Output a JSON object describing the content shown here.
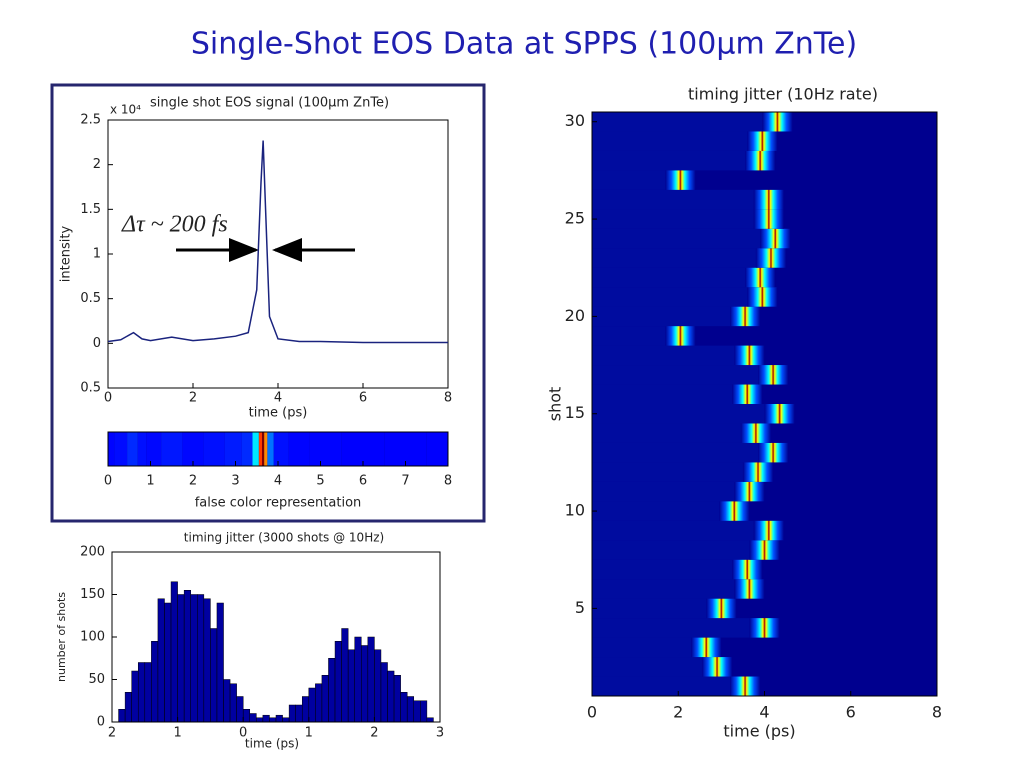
{
  "title": "Single-Shot EOS Data at SPPS (100µm ZnTe)",
  "chart_data": [
    {
      "type": "line",
      "title": "single shot EOS signal (100µm ZnTe)",
      "y_multiplier": "x 10⁴",
      "xlabel": "time (ps)",
      "ylabel": "intensity",
      "annotation": "Δτ ~ 200 fs",
      "color": "#1a237e",
      "x": [
        0,
        0.3,
        0.6,
        0.8,
        1,
        1.5,
        2,
        2.5,
        3,
        3.3,
        3.5,
        3.6,
        3.65,
        3.7,
        3.8,
        4,
        4.5,
        5,
        6,
        7,
        8
      ],
      "values": [
        0.02,
        0.04,
        0.12,
        0.05,
        0.03,
        0.07,
        0.03,
        0.05,
        0.08,
        0.12,
        0.6,
        1.8,
        2.27,
        1.6,
        0.3,
        0.05,
        0.02,
        0.02,
        0.01,
        0.01,
        0.01
      ],
      "xlim": [
        0,
        8
      ],
      "xticks": [
        0,
        2,
        4,
        6,
        8
      ],
      "ylim": [
        -0.5,
        2.5
      ],
      "yticks": [
        {
          "value": -0.5,
          "label": "0.5"
        },
        0,
        0.5,
        1,
        1.5,
        2,
        2.5
      ]
    },
    {
      "type": "strip",
      "xlabel": "false color representation",
      "x": [
        0,
        0.3,
        0.6,
        0.8,
        1,
        1.5,
        2,
        2.5,
        3,
        3.3,
        3.5,
        3.6,
        3.65,
        3.7,
        3.8,
        4,
        4.5,
        5,
        6,
        7,
        8
      ],
      "values": [
        0.02,
        0.04,
        0.12,
        0.05,
        0.03,
        0.07,
        0.03,
        0.05,
        0.08,
        0.12,
        0.6,
        1.8,
        2.27,
        1.6,
        0.3,
        0.05,
        0.02,
        0.02,
        0.01,
        0.01,
        0.01
      ],
      "xlim": [
        0,
        8
      ],
      "xticks": [
        0,
        1,
        2,
        3,
        4,
        5,
        6,
        7,
        8
      ]
    },
    {
      "type": "histogram",
      "title": "timing jitter (3000 shots @ 10Hz)",
      "xlabel": "time (ps)",
      "ylabel": "number of shots",
      "color": "#0000a0",
      "bins": [
        -1.9,
        -1.8,
        -1.7,
        -1.6,
        -1.5,
        -1.4,
        -1.3,
        -1.2,
        -1.1,
        -1.0,
        -0.9,
        -0.8,
        -0.7,
        -0.6,
        -0.5,
        -0.4,
        -0.3,
        -0.2,
        -0.1,
        0.0,
        0.1,
        0.2,
        0.3,
        0.4,
        0.5,
        0.6,
        0.7,
        0.8,
        0.9,
        1.0,
        1.1,
        1.2,
        1.3,
        1.4,
        1.5,
        1.6,
        1.7,
        1.8,
        1.9,
        2.0,
        2.1,
        2.2,
        2.3,
        2.4,
        2.5,
        2.6,
        2.7,
        2.8,
        2.9
      ],
      "values": [
        15,
        35,
        60,
        70,
        70,
        95,
        145,
        140,
        165,
        150,
        155,
        150,
        150,
        145,
        110,
        140,
        50,
        45,
        30,
        15,
        10,
        5,
        8,
        5,
        8,
        5,
        20,
        20,
        30,
        40,
        45,
        55,
        75,
        95,
        110,
        85,
        100,
        90,
        100,
        85,
        70,
        60,
        55,
        35,
        30,
        25,
        25,
        5
      ],
      "xlim": [
        -2,
        3
      ],
      "xticks": [
        {
          "value": -2,
          "label": "2"
        },
        {
          "value": -1,
          "label": "1"
        },
        0,
        1,
        2,
        3
      ],
      "ylim": [
        0,
        200
      ],
      "yticks": [
        0,
        50,
        100,
        150,
        200
      ]
    },
    {
      "type": "heatmap",
      "title": "timing jitter (10Hz rate)",
      "xlabel": "time (ps)",
      "ylabel": "shot",
      "categories": [
        1,
        2,
        3,
        4,
        5,
        6,
        7,
        8,
        9,
        10,
        11,
        12,
        13,
        14,
        15,
        16,
        17,
        18,
        19,
        20,
        21,
        22,
        23,
        24,
        25,
        26,
        27,
        28,
        29,
        30
      ],
      "values": [
        3.55,
        2.9,
        2.65,
        4.0,
        3.0,
        3.65,
        3.6,
        4.0,
        4.1,
        3.3,
        3.65,
        3.85,
        4.2,
        3.8,
        4.35,
        3.6,
        4.2,
        3.65,
        2.05,
        3.55,
        3.95,
        3.9,
        4.15,
        4.25,
        4.1,
        4.1,
        2.05,
        3.9,
        3.95,
        4.3
      ],
      "xlim": [
        0,
        8
      ],
      "xticks": [
        0,
        2,
        4,
        6,
        8
      ],
      "ylim": [
        0.5,
        30.5
      ],
      "yticks": [
        5,
        10,
        15,
        20,
        25,
        30
      ]
    }
  ]
}
